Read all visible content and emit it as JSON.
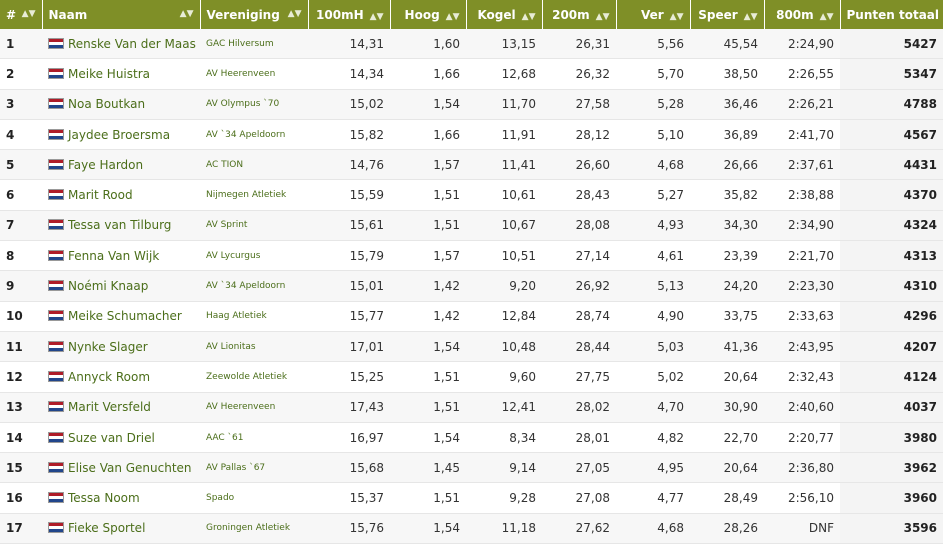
{
  "colors": {
    "header_bg": "#7f8f27",
    "link": "#4b6e1a"
  },
  "headers": [
    "#",
    "Naam",
    "Vereniging",
    "100mH",
    "Hoog",
    "Kogel",
    "200m",
    "Ver",
    "Speer",
    "800m",
    "Punten totaal"
  ],
  "rows": [
    {
      "rank": "1",
      "name": "Renske Van der Maas",
      "club": "GAC Hilversum",
      "h100": "14,31",
      "hoog": "1,60",
      "kogel": "13,15",
      "m200": "26,31",
      "ver": "5,56",
      "speer": "45,54",
      "m800": "2:24,90",
      "total": "5427"
    },
    {
      "rank": "2",
      "name": "Meike Huistra",
      "club": "AV Heerenveen",
      "h100": "14,34",
      "hoog": "1,66",
      "kogel": "12,68",
      "m200": "26,32",
      "ver": "5,70",
      "speer": "38,50",
      "m800": "2:26,55",
      "total": "5347"
    },
    {
      "rank": "3",
      "name": "Noa Boutkan",
      "club": "AV Olympus `70",
      "h100": "15,02",
      "hoog": "1,54",
      "kogel": "11,70",
      "m200": "27,58",
      "ver": "5,28",
      "speer": "36,46",
      "m800": "2:26,21",
      "total": "4788"
    },
    {
      "rank": "4",
      "name": "Jaydee Broersma",
      "club": "AV `34 Apeldoorn",
      "h100": "15,82",
      "hoog": "1,66",
      "kogel": "11,91",
      "m200": "28,12",
      "ver": "5,10",
      "speer": "36,89",
      "m800": "2:41,70",
      "total": "4567"
    },
    {
      "rank": "5",
      "name": "Faye Hardon",
      "club": "AC TION",
      "h100": "14,76",
      "hoog": "1,57",
      "kogel": "11,41",
      "m200": "26,60",
      "ver": "4,68",
      "speer": "26,66",
      "m800": "2:37,61",
      "total": "4431"
    },
    {
      "rank": "6",
      "name": "Marit Rood",
      "club": "Nijmegen Atletiek",
      "h100": "15,59",
      "hoog": "1,51",
      "kogel": "10,61",
      "m200": "28,43",
      "ver": "5,27",
      "speer": "35,82",
      "m800": "2:38,88",
      "total": "4370"
    },
    {
      "rank": "7",
      "name": "Tessa van Tilburg",
      "club": "AV Sprint",
      "h100": "15,61",
      "hoog": "1,51",
      "kogel": "10,67",
      "m200": "28,08",
      "ver": "4,93",
      "speer": "34,30",
      "m800": "2:34,90",
      "total": "4324"
    },
    {
      "rank": "8",
      "name": "Fenna Van Wijk",
      "club": "AV Lycurgus",
      "h100": "15,79",
      "hoog": "1,57",
      "kogel": "10,51",
      "m200": "27,14",
      "ver": "4,61",
      "speer": "23,39",
      "m800": "2:21,70",
      "total": "4313"
    },
    {
      "rank": "9",
      "name": "Noémi Knaap",
      "club": "AV `34 Apeldoorn",
      "h100": "15,01",
      "hoog": "1,42",
      "kogel": "9,20",
      "m200": "26,92",
      "ver": "5,13",
      "speer": "24,20",
      "m800": "2:23,30",
      "total": "4310"
    },
    {
      "rank": "10",
      "name": "Meike Schumacher",
      "club": "Haag Atletiek",
      "h100": "15,77",
      "hoog": "1,42",
      "kogel": "12,84",
      "m200": "28,74",
      "ver": "4,90",
      "speer": "33,75",
      "m800": "2:33,63",
      "total": "4296"
    },
    {
      "rank": "11",
      "name": "Nynke Slager",
      "club": "AV Lionitas",
      "h100": "17,01",
      "hoog": "1,54",
      "kogel": "10,48",
      "m200": "28,44",
      "ver": "5,03",
      "speer": "41,36",
      "m800": "2:43,95",
      "total": "4207"
    },
    {
      "rank": "12",
      "name": "Annyck Room",
      "club": "Zeewolde Atletiek",
      "h100": "15,25",
      "hoog": "1,51",
      "kogel": "9,60",
      "m200": "27,75",
      "ver": "5,02",
      "speer": "20,64",
      "m800": "2:32,43",
      "total": "4124"
    },
    {
      "rank": "13",
      "name": "Marit Versfeld",
      "club": "AV Heerenveen",
      "h100": "17,43",
      "hoog": "1,51",
      "kogel": "12,41",
      "m200": "28,02",
      "ver": "4,70",
      "speer": "30,90",
      "m800": "2:40,60",
      "total": "4037"
    },
    {
      "rank": "14",
      "name": "Suze van Driel",
      "club": "AAC `61",
      "h100": "16,97",
      "hoog": "1,54",
      "kogel": "8,34",
      "m200": "28,01",
      "ver": "4,82",
      "speer": "22,70",
      "m800": "2:20,77",
      "total": "3980"
    },
    {
      "rank": "15",
      "name": "Elise Van Genuchten",
      "club": "AV Pallas `67",
      "h100": "15,68",
      "hoog": "1,45",
      "kogel": "9,14",
      "m200": "27,05",
      "ver": "4,95",
      "speer": "20,64",
      "m800": "2:36,80",
      "total": "3962"
    },
    {
      "rank": "16",
      "name": "Tessa Noom",
      "club": "Spado",
      "h100": "15,37",
      "hoog": "1,51",
      "kogel": "9,28",
      "m200": "27,08",
      "ver": "4,77",
      "speer": "28,49",
      "m800": "2:56,10",
      "total": "3960"
    },
    {
      "rank": "17",
      "name": "Fieke Sportel",
      "club": "Groningen Atletiek",
      "h100": "15,76",
      "hoog": "1,54",
      "kogel": "11,18",
      "m200": "27,62",
      "ver": "4,68",
      "speer": "28,26",
      "m800": "DNF",
      "total": "3596"
    }
  ]
}
